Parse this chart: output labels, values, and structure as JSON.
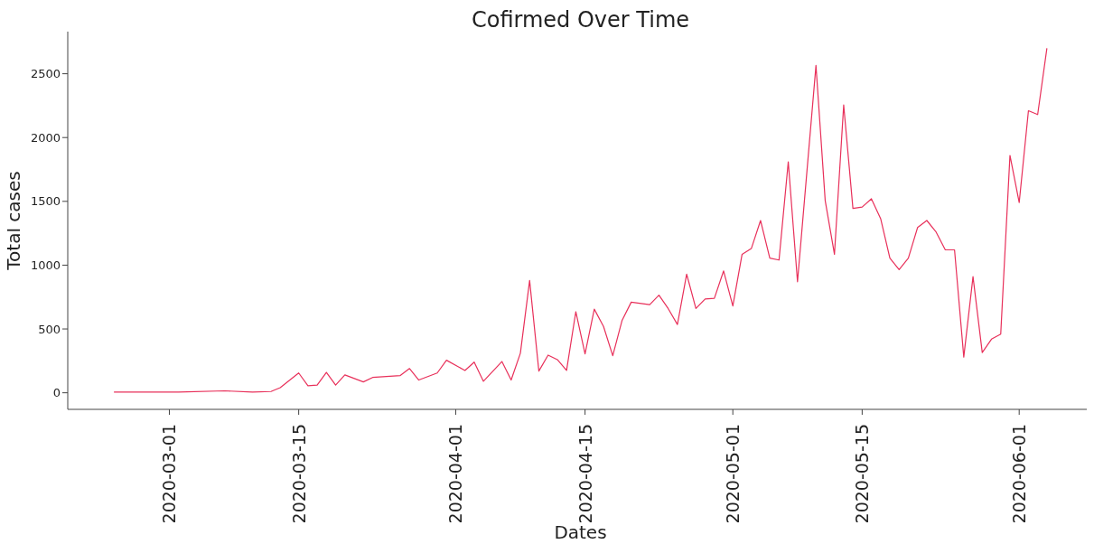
{
  "chart_data": {
    "type": "line",
    "title": "Cofirmed Over Time",
    "xlabel": "Dates",
    "ylabel": "Total cases",
    "x": [
      "2020-02-24",
      "2020-03-02",
      "2020-03-07",
      "2020-03-10",
      "2020-03-12",
      "2020-03-13",
      "2020-03-15",
      "2020-03-16",
      "2020-03-17",
      "2020-03-18",
      "2020-03-19",
      "2020-03-20",
      "2020-03-22",
      "2020-03-23",
      "2020-03-26",
      "2020-03-27",
      "2020-03-28",
      "2020-03-30",
      "2020-03-31",
      "2020-04-02",
      "2020-04-03",
      "2020-04-04",
      "2020-04-06",
      "2020-04-07",
      "2020-04-08",
      "2020-04-09",
      "2020-04-10",
      "2020-04-11",
      "2020-04-12",
      "2020-04-13",
      "2020-04-14",
      "2020-04-15",
      "2020-04-16",
      "2020-04-17",
      "2020-04-18",
      "2020-04-19",
      "2020-04-20",
      "2020-04-22",
      "2020-04-23",
      "2020-04-24",
      "2020-04-25",
      "2020-04-26",
      "2020-04-27",
      "2020-04-28",
      "2020-04-29",
      "2020-04-30",
      "2020-05-01",
      "2020-05-02",
      "2020-05-03",
      "2020-05-04",
      "2020-05-05",
      "2020-05-06",
      "2020-05-07",
      "2020-05-08",
      "2020-05-10",
      "2020-05-11",
      "2020-05-12",
      "2020-05-13",
      "2020-05-14",
      "2020-05-15",
      "2020-05-16",
      "2020-05-17",
      "2020-05-18",
      "2020-05-19",
      "2020-05-20",
      "2020-05-21",
      "2020-05-22",
      "2020-05-23",
      "2020-05-24",
      "2020-05-25",
      "2020-05-26",
      "2020-05-27",
      "2020-05-28",
      "2020-05-29",
      "2020-05-30",
      "2020-05-31",
      "2020-06-01",
      "2020-06-02",
      "2020-06-03",
      "2020-06-04"
    ],
    "series": [
      {
        "color": "#e8305a",
        "values": [
          5,
          5,
          15,
          5,
          10,
          40,
          155,
          55,
          60,
          160,
          60,
          140,
          85,
          120,
          135,
          190,
          100,
          155,
          255,
          175,
          240,
          90,
          245,
          100,
          310,
          880,
          170,
          295,
          260,
          175,
          635,
          305,
          655,
          520,
          290,
          565,
          710,
          690,
          765,
          660,
          535,
          930,
          660,
          735,
          740,
          955,
          680,
          1085,
          1130,
          1350,
          1055,
          1040,
          1810,
          870,
          2565,
          1505,
          1085,
          2255,
          1445,
          1455,
          1520,
          1365,
          1055,
          965,
          1055,
          1295,
          1350,
          1260,
          1120,
          1120,
          280,
          910,
          315,
          420,
          460,
          1860,
          1490,
          2210,
          2180,
          2700
        ]
      }
    ],
    "xlim": [
      "2020-02-19",
      "2020-06-09"
    ],
    "xticks": [
      "2020-03-01",
      "2020-03-15",
      "2020-04-01",
      "2020-04-15",
      "2020-05-01",
      "2020-05-15",
      "2020-06-01"
    ],
    "ylim": [
      -130,
      2830
    ],
    "yticks": [
      0,
      500,
      1000,
      1500,
      2000,
      2500
    ],
    "grid": false,
    "legend": false,
    "marker": "none",
    "line_style": "solid"
  }
}
